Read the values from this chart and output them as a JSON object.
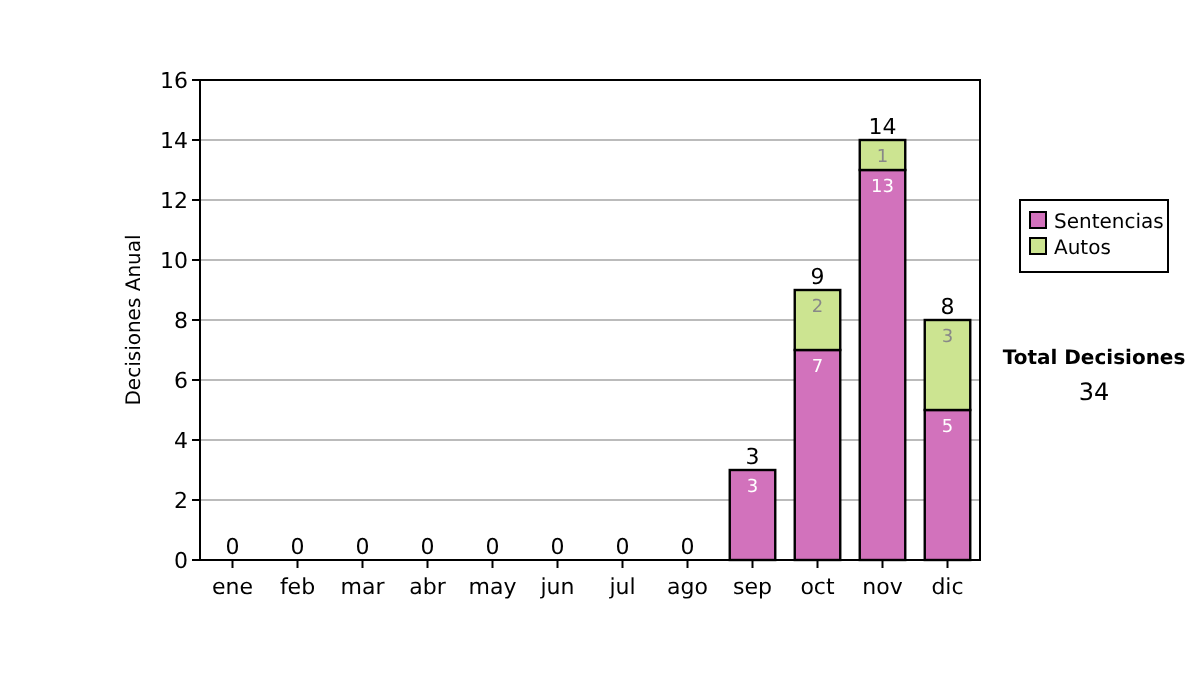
{
  "chart_data": {
    "type": "bar",
    "stacked": true,
    "categories": [
      "ene",
      "feb",
      "mar",
      "abr",
      "may",
      "jun",
      "jul",
      "ago",
      "sep",
      "oct",
      "nov",
      "dic"
    ],
    "series": [
      {
        "name": "Sentencias",
        "color": "#d272bc",
        "values": [
          0,
          0,
          0,
          0,
          0,
          0,
          0,
          0,
          3,
          7,
          13,
          5
        ],
        "value_labels": [
          null,
          null,
          null,
          null,
          null,
          null,
          null,
          null,
          "3",
          "7",
          "13",
          "5"
        ]
      },
      {
        "name": "Autos",
        "color": "#cce491",
        "values": [
          0,
          0,
          0,
          0,
          0,
          0,
          0,
          0,
          0,
          2,
          1,
          3
        ],
        "value_labels": [
          null,
          null,
          null,
          null,
          null,
          null,
          null,
          null,
          null,
          "2",
          "1",
          "3"
        ]
      }
    ],
    "totals": [
      "0",
      "0",
      "0",
      "0",
      "0",
      "0",
      "0",
      "0",
      "3",
      "9",
      "14",
      "8"
    ],
    "ylabel": "Decisiones Anual",
    "ylim": [
      0,
      16
    ],
    "yticks": [
      0,
      2,
      4,
      6,
      8,
      10,
      12,
      14,
      16
    ],
    "grid": "y",
    "legend": "right",
    "annotations": [
      "Total Decisiones",
      "34"
    ]
  }
}
